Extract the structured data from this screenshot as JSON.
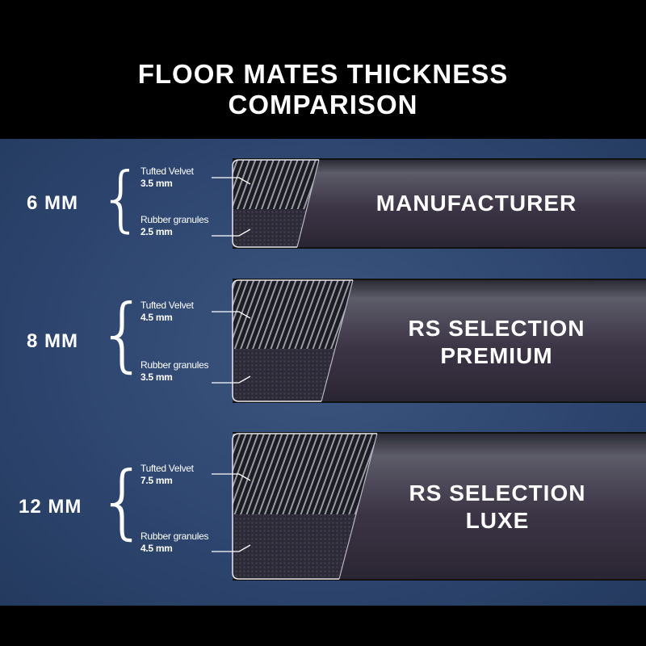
{
  "title": {
    "line1": "FLOOR MATES THICKNESS",
    "line2": "COMPARISON"
  },
  "rows": [
    {
      "total": "6 MM",
      "top_layer": "Tufted Velvet",
      "top_thickness": "3.5 mm",
      "bottom_layer": "Rubber granules",
      "bottom_thickness": "2.5 mm",
      "name_line1": "MANUFACTURER",
      "name_line2": ""
    },
    {
      "total": "8 MM",
      "top_layer": "Tufted Velvet",
      "top_thickness": "4.5 mm",
      "bottom_layer": "Rubber granules",
      "bottom_thickness": "3.5 mm",
      "name_line1": "RS SELECTION",
      "name_line2": "PREMIUM"
    },
    {
      "total": "12 MM",
      "top_layer": "Tufted Velvet",
      "top_thickness": "7.5 mm",
      "bottom_layer": "Rubber granules",
      "bottom_thickness": "4.5 mm",
      "name_line1": "RS SELECTION",
      "name_line2": "LUXE"
    }
  ],
  "colors": {
    "background_panel": "#2e4670",
    "mat_body": "#3d3748",
    "frame": "#000000",
    "text": "#ffffff"
  }
}
